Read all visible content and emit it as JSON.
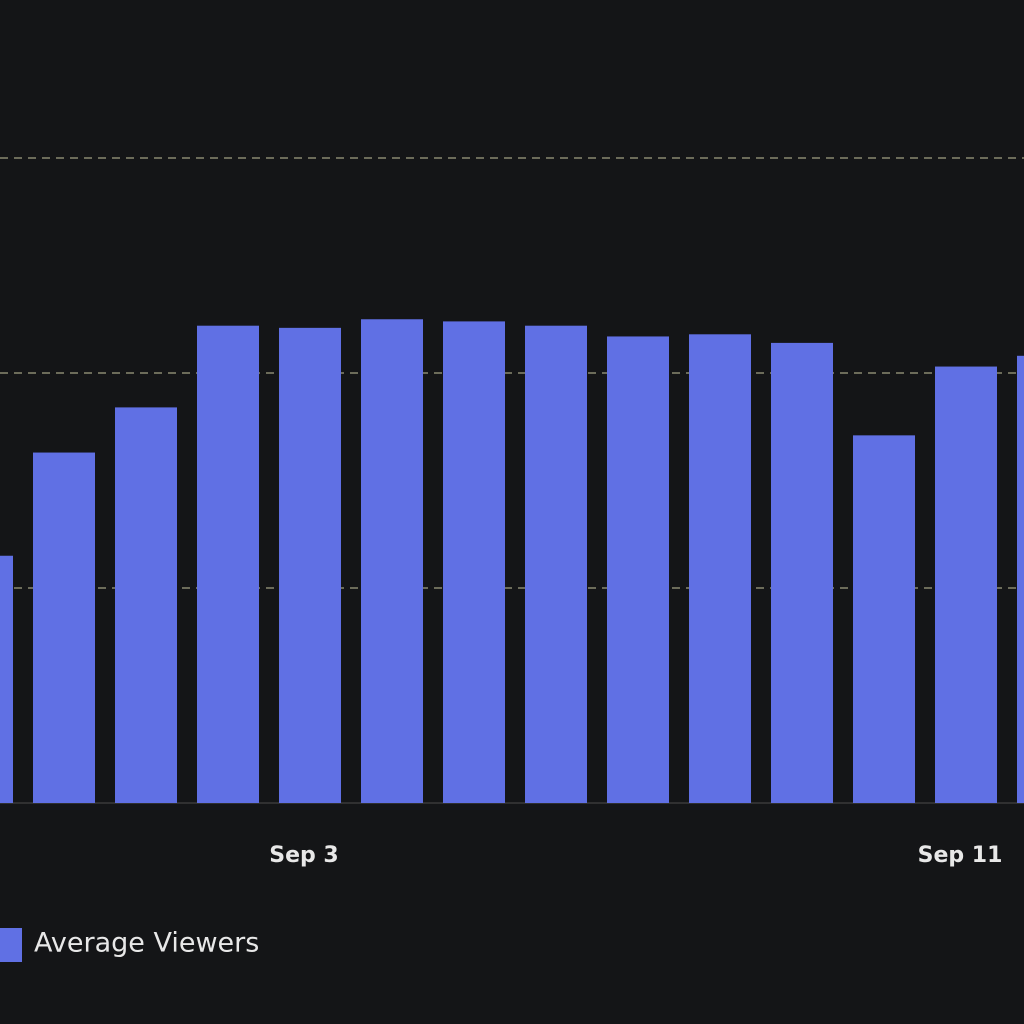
{
  "chart_data": {
    "type": "bar",
    "categories": [
      null,
      null,
      null,
      null,
      "Sep 3",
      null,
      null,
      null,
      null,
      null,
      null,
      null,
      "Sep 11",
      null
    ],
    "series": [
      {
        "name": "Average Viewers",
        "color": "#6070e4",
        "values": [
          1.15,
          1.63,
          1.84,
          2.22,
          2.21,
          2.25,
          2.24,
          2.22,
          2.17,
          2.18,
          2.14,
          1.71,
          2.03,
          2.08
        ]
      }
    ],
    "ylim": [
      0,
      3.2
    ],
    "yticks": [
      0,
      1,
      2,
      3
    ],
    "grid": true
  }
}
